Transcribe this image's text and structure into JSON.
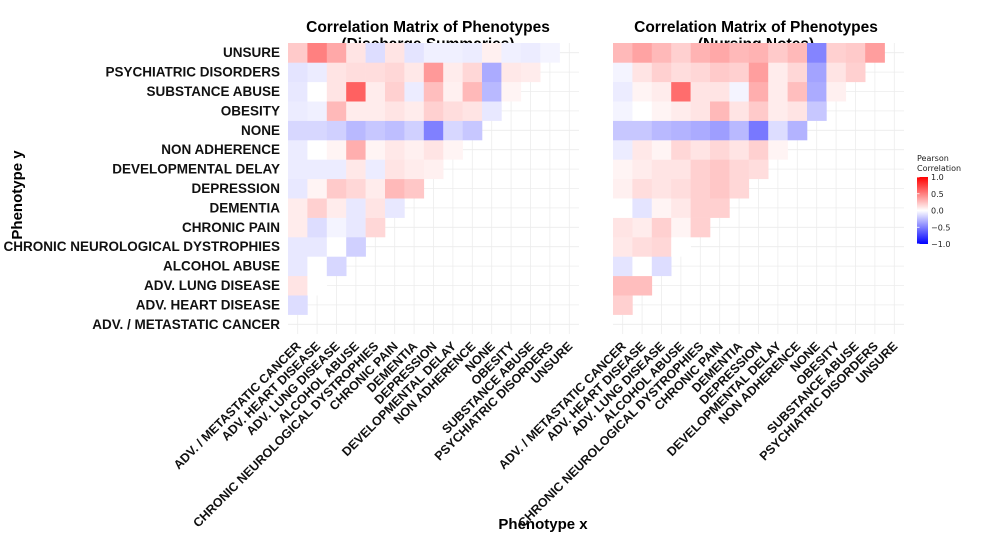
{
  "figure": {
    "axis_x_title": "Phenotype x",
    "axis_y_title": "Phenotype y"
  },
  "legend": {
    "title_line1": "Pearson",
    "title_line2": "Correlation",
    "ticks": [
      "1.0",
      "0.5",
      "0.0",
      "−0.5",
      "−1.0"
    ],
    "tick_values": [
      1.0,
      0.5,
      0.0,
      -0.5,
      -1.0
    ],
    "colors": {
      "high": "#ff0000",
      "mid": "#ffffff",
      "low": "#0000ff"
    }
  },
  "phenotypes": [
    "ADV. / METASTATIC CANCER",
    "ADV. HEART DISEASE",
    "ADV. LUNG DISEASE",
    "ALCOHOL ABUSE",
    "CHRONIC NEUROLOGICAL DYSTROPHIES",
    "CHRONIC PAIN",
    "DEMENTIA",
    "DEPRESSION",
    "DEVELOPMENTAL DELAY",
    "NON ADHERENCE",
    "NONE",
    "OBESITY",
    "SUBSTANCE ABUSE",
    "PSYCHIATRIC DISORDERS",
    "UNSURE"
  ],
  "chart_data": [
    {
      "type": "heatmap",
      "title_line1": "Correlation Matrix of Phenotypes",
      "title_line2": "(Discharge Summaries)",
      "xlabel": "Phenotype x",
      "ylabel": "Phenotype y",
      "value_range": [
        -1,
        1
      ],
      "rows": [
        {
          "y": "ADV. HEART DISEASE",
          "values": [
            -0.08
          ]
        },
        {
          "y": "ADV. LUNG DISEASE",
          "values": [
            0.06,
            0.0
          ]
        },
        {
          "y": "ALCOHOL ABUSE",
          "values": [
            -0.05,
            0.0,
            -0.1
          ]
        },
        {
          "y": "CHRONIC NEUROLOGICAL DYSTROPHIES",
          "values": [
            -0.05,
            -0.05,
            0.0,
            -0.12
          ]
        },
        {
          "y": "CHRONIC PAIN",
          "values": [
            0.04,
            -0.08,
            -0.02,
            -0.05,
            0.1
          ]
        },
        {
          "y": "DEMENTIA",
          "values": [
            0.04,
            0.12,
            0.04,
            -0.05,
            0.06,
            -0.05
          ]
        },
        {
          "y": "DEPRESSION",
          "values": [
            -0.05,
            0.02,
            0.14,
            0.1,
            0.04,
            0.2,
            0.15
          ]
        },
        {
          "y": "DEVELOPMENTAL DELAY",
          "values": [
            -0.04,
            -0.04,
            -0.04,
            0.05,
            -0.04,
            0.06,
            0.04,
            0.03
          ]
        },
        {
          "y": "NON ADHERENCE",
          "values": [
            -0.04,
            0.0,
            0.02,
            0.24,
            0.02,
            0.05,
            0.03,
            0.06,
            0.02
          ]
        },
        {
          "y": "NONE",
          "values": [
            -0.1,
            -0.1,
            -0.12,
            -0.2,
            -0.15,
            -0.18,
            -0.12,
            -0.42,
            -0.1,
            -0.15
          ]
        },
        {
          "y": "OBESITY",
          "values": [
            -0.04,
            -0.03,
            0.2,
            0.04,
            0.04,
            0.06,
            0.04,
            0.12,
            0.08,
            0.06,
            -0.05
          ]
        },
        {
          "y": "SUBSTANCE ABUSE",
          "values": [
            -0.05,
            0.0,
            0.06,
            0.55,
            0.04,
            0.12,
            -0.04,
            0.18,
            0.03,
            0.2,
            -0.2,
            0.02
          ]
        },
        {
          "y": "PSYCHIATRIC DISORDERS",
          "values": [
            -0.06,
            -0.04,
            0.06,
            0.08,
            0.08,
            0.1,
            0.05,
            0.32,
            0.04,
            0.1,
            -0.25,
            0.05,
            0.04
          ]
        },
        {
          "y": "UNSURE",
          "values": [
            0.14,
            0.42,
            0.26,
            0.06,
            -0.08,
            0.06,
            -0.06,
            -0.03,
            -0.03,
            -0.04,
            0.03,
            -0.03,
            -0.04,
            -0.02
          ]
        }
      ]
    },
    {
      "type": "heatmap",
      "title_line1": "Correlation Matrix of Phenotypes",
      "title_line2": "(Nursing Notes)",
      "xlabel": "Phenotype x",
      "ylabel": "Phenotype y",
      "value_range": [
        -1,
        1
      ],
      "rows": [
        {
          "y": "ADV. HEART DISEASE",
          "values": [
            0.12
          ]
        },
        {
          "y": "ADV. LUNG DISEASE",
          "values": [
            0.18,
            0.18
          ]
        },
        {
          "y": "ALCOHOL ABUSE",
          "values": [
            -0.06,
            0.0,
            -0.08
          ]
        },
        {
          "y": "CHRONIC NEUROLOGICAL DYSTROPHIES",
          "values": [
            0.05,
            0.08,
            0.1,
            0.0
          ]
        },
        {
          "y": "CHRONIC PAIN",
          "values": [
            0.06,
            0.04,
            0.12,
            0.02,
            0.12
          ]
        },
        {
          "y": "DEMENTIA",
          "values": [
            0.0,
            -0.06,
            0.02,
            0.05,
            0.12,
            0.12
          ]
        },
        {
          "y": "DEPRESSION",
          "values": [
            0.03,
            0.08,
            0.06,
            0.08,
            0.12,
            0.15,
            0.1
          ]
        },
        {
          "y": "DEVELOPMENTAL DELAY",
          "values": [
            0.02,
            0.04,
            0.06,
            0.06,
            0.12,
            0.15,
            0.1,
            0.08
          ]
        },
        {
          "y": "NON ADHERENCE",
          "values": [
            -0.04,
            0.05,
            0.02,
            0.1,
            0.06,
            0.1,
            0.06,
            0.12,
            0.02
          ]
        },
        {
          "y": "NONE",
          "values": [
            -0.15,
            -0.15,
            -0.2,
            -0.22,
            -0.25,
            -0.3,
            -0.2,
            -0.45,
            -0.08,
            -0.22
          ]
        },
        {
          "y": "OBESITY",
          "values": [
            -0.02,
            0.0,
            0.02,
            0.04,
            0.06,
            0.2,
            0.06,
            0.14,
            0.04,
            0.06,
            -0.15
          ]
        },
        {
          "y": "SUBSTANCE ABUSE",
          "values": [
            -0.04,
            0.02,
            0.04,
            0.5,
            0.06,
            0.06,
            -0.02,
            0.24,
            0.04,
            0.18,
            -0.25,
            0.03
          ]
        },
        {
          "y": "PSYCHIATRIC DISORDERS",
          "values": [
            -0.02,
            0.06,
            0.12,
            0.08,
            0.1,
            0.14,
            0.12,
            0.3,
            0.04,
            0.1,
            -0.28,
            0.06,
            0.12
          ]
        },
        {
          "y": "UNSURE",
          "values": [
            0.2,
            0.28,
            0.2,
            0.12,
            0.22,
            0.26,
            0.2,
            0.22,
            0.14,
            0.2,
            -0.4,
            0.12,
            0.14,
            0.3
          ]
        }
      ]
    }
  ]
}
